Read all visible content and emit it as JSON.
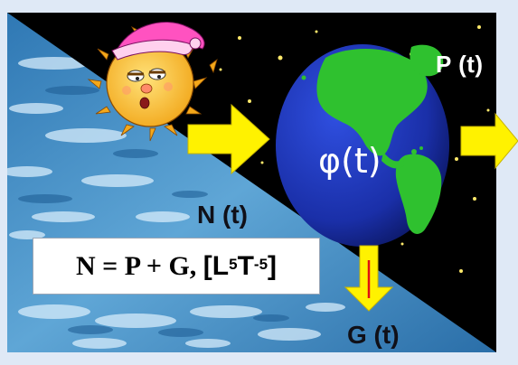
{
  "labels": {
    "p": "P (t)",
    "n": "N (t)",
    "g": "G (t)",
    "phi": "φ(t)"
  },
  "equation": {
    "lhs": "N = P + G,",
    "bracket_open": "[L",
    "exp1": "5",
    "mid": "T",
    "exp2": "-5",
    "bracket_close": "]"
  },
  "colors": {
    "arrow": "#fff200",
    "space": "#000000",
    "ocean": "#4a8fc4",
    "globe_ocean": "#1d33b5",
    "globe_land": "#2fc12f",
    "frame": "#dfe9f6"
  },
  "icons": [
    "sleepy-sun-icon",
    "globe-icon"
  ]
}
